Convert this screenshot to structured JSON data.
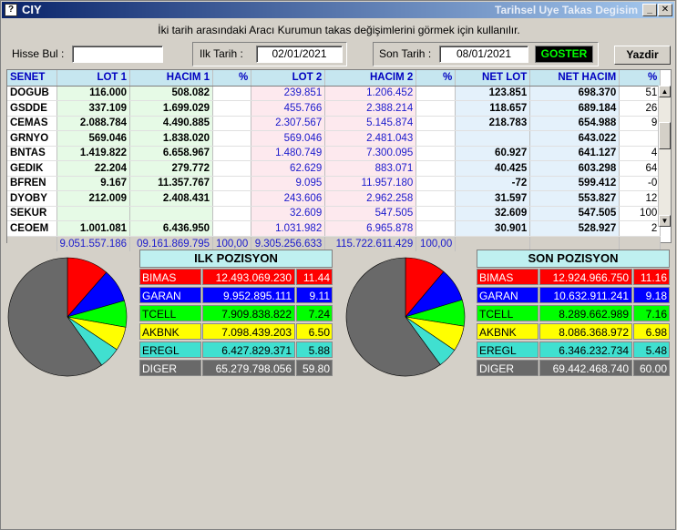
{
  "window": {
    "app_name": "CIY",
    "title": "Tarihsel Uye Takas Degisim",
    "icon_glyph": "?",
    "min_glyph": "_",
    "close_glyph": "✕"
  },
  "subtitle": "İki tarih arasındaki Aracı Kurumun takas değişimlerini görmek için kullanılır.",
  "search": {
    "label": "Hisse Bul :",
    "value": ""
  },
  "ilk_tarih": {
    "label": "Ilk Tarih :",
    "value": "02/01/2021"
  },
  "son_tarih": {
    "label": "Son Tarih :",
    "value": "08/01/2021"
  },
  "buttons": {
    "goster": "GOSTER",
    "yazdir": "Yazdir"
  },
  "grid": {
    "headers": [
      "SENET",
      "LOT 1",
      "HACIM 1",
      "%",
      "LOT 2",
      "HACIM 2",
      "%",
      "NET LOT",
      "NET HACIM",
      "%"
    ],
    "rows": [
      [
        "DOGUB",
        "116.000",
        "508.082",
        "",
        "239.851",
        "1.206.452",
        "",
        "123.851",
        "698.370",
        "51"
      ],
      [
        "GSDDE",
        "337.109",
        "1.699.029",
        "",
        "455.766",
        "2.388.214",
        "",
        "118.657",
        "689.184",
        "26"
      ],
      [
        "CEMAS",
        "2.088.784",
        "4.490.885",
        "",
        "2.307.567",
        "5.145.874",
        "",
        "218.783",
        "654.988",
        "9"
      ],
      [
        "GRNYO",
        "569.046",
        "1.838.020",
        "",
        "569.046",
        "2.481.043",
        "",
        "",
        "643.022",
        ""
      ],
      [
        "BNTAS",
        "1.419.822",
        "6.658.967",
        "",
        "1.480.749",
        "7.300.095",
        "",
        "60.927",
        "641.127",
        "4"
      ],
      [
        "GEDIK",
        "22.204",
        "279.772",
        "",
        "62.629",
        "883.071",
        "",
        "40.425",
        "603.298",
        "64"
      ],
      [
        "BFREN",
        "9.167",
        "11.357.767",
        "",
        "9.095",
        "11.957.180",
        "",
        "-72",
        "599.412",
        "-0"
      ],
      [
        "DYOBY",
        "212.009",
        "2.408.431",
        "",
        "243.606",
        "2.962.258",
        "",
        "31.597",
        "553.827",
        "12"
      ],
      [
        "SEKUR",
        "",
        "",
        "",
        "32.609",
        "547.505",
        "",
        "32.609",
        "547.505",
        "100"
      ],
      [
        "CEOEM",
        "1.001.081",
        "6.436.950",
        "",
        "1.031.982",
        "6.965.878",
        "",
        "30.901",
        "528.927",
        "2"
      ]
    ],
    "totals": [
      "",
      "9.051.557.186",
      "09.161.869.795",
      "100,00",
      "9.305.256.633",
      "115.722.611.429",
      "100,00",
      "",
      "",
      ""
    ],
    "scroll_up": "▲",
    "scroll_down": "▼"
  },
  "ilk_pozisyon": {
    "title": "ILK POZISYON",
    "rows": [
      {
        "name": "BIMAS",
        "value": "12.493.069.230",
        "pct": "11.44",
        "pct_num": 11.44,
        "color": "#ff0000",
        "text": "#ffffff"
      },
      {
        "name": "GARAN",
        "value": "9.952.895.111",
        "pct": "9.11",
        "pct_num": 9.11,
        "color": "#0000ff",
        "text": "#ffffff"
      },
      {
        "name": "TCELL",
        "value": "7.909.838.822",
        "pct": "7.24",
        "pct_num": 7.24,
        "color": "#00ff00",
        "text": "#000000"
      },
      {
        "name": "AKBNK",
        "value": "7.098.439.203",
        "pct": "6.50",
        "pct_num": 6.5,
        "color": "#ffff00",
        "text": "#000000"
      },
      {
        "name": "EREGL",
        "value": "6.427.829.371",
        "pct": "5.88",
        "pct_num": 5.88,
        "color": "#40e0d0",
        "text": "#000000"
      },
      {
        "name": "DIGER",
        "value": "65.279.798.056",
        "pct": "59.80",
        "pct_num": 59.8,
        "color": "#696969",
        "text": "#ffffff"
      }
    ]
  },
  "son_pozisyon": {
    "title": "SON POZISYON",
    "rows": [
      {
        "name": "BIMAS",
        "value": "12.924.966.750",
        "pct": "11.16",
        "pct_num": 11.16,
        "color": "#ff0000",
        "text": "#ffffff"
      },
      {
        "name": "GARAN",
        "value": "10.632.911.241",
        "pct": "9.18",
        "pct_num": 9.18,
        "color": "#0000ff",
        "text": "#ffffff"
      },
      {
        "name": "TCELL",
        "value": "8.289.662.989",
        "pct": "7.16",
        "pct_num": 7.16,
        "color": "#00ff00",
        "text": "#000000"
      },
      {
        "name": "AKBNK",
        "value": "8.086.368.972",
        "pct": "6.98",
        "pct_num": 6.98,
        "color": "#ffff00",
        "text": "#000000"
      },
      {
        "name": "EREGL",
        "value": "6.346.232.734",
        "pct": "5.48",
        "pct_num": 5.48,
        "color": "#40e0d0",
        "text": "#000000"
      },
      {
        "name": "DIGER",
        "value": "69.442.468.740",
        "pct": "60.00",
        "pct_num": 60.0,
        "color": "#696969",
        "text": "#ffffff"
      }
    ]
  }
}
